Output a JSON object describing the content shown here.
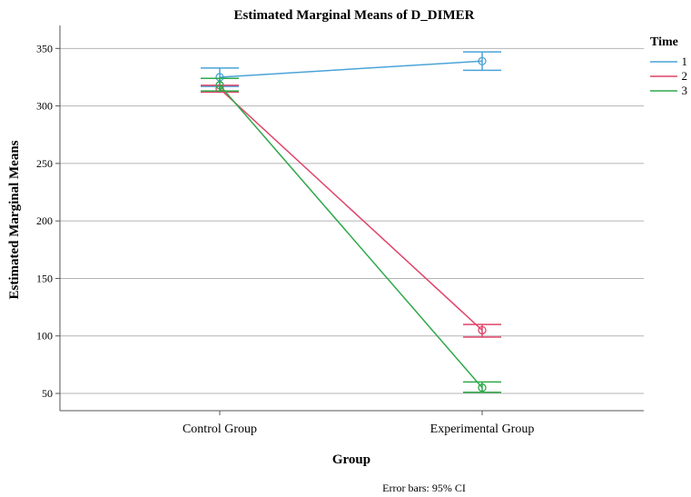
{
  "chart_data": {
    "type": "line",
    "title": "Estimated Marginal Means of D_DIMER",
    "xlabel": "Group",
    "ylabel": "Estimated Marginal Means",
    "categories": [
      "Control Group",
      "Experimental Group"
    ],
    "ylim": [
      35,
      370
    ],
    "yticks": [
      50,
      100,
      150,
      200,
      250,
      300,
      350
    ],
    "grid": "horizontal",
    "legend": {
      "title": "Time",
      "position": "right"
    },
    "footnote": "Error bars: 95% CI",
    "series": [
      {
        "name": "1",
        "color": "#4aa3d8",
        "values": [
          325,
          339
        ],
        "ci_low": [
          317,
          331
        ],
        "ci_high": [
          333,
          347
        ]
      },
      {
        "name": "2",
        "color": "#e0446a",
        "values": [
          315,
          105
        ],
        "ci_low": [
          312,
          99
        ],
        "ci_high": [
          318,
          110
        ]
      },
      {
        "name": "3",
        "color": "#2ea84a",
        "values": [
          318,
          55
        ],
        "ci_low": [
          313,
          51
        ],
        "ci_high": [
          324,
          60
        ]
      }
    ]
  }
}
